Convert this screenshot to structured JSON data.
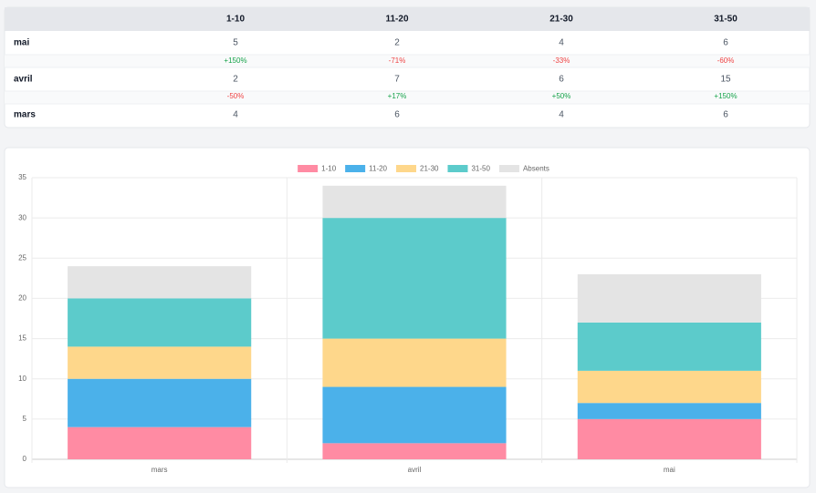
{
  "table": {
    "header": [
      "1-10",
      "11-20",
      "21-30",
      "31-50"
    ],
    "rows": [
      {
        "label": "mai",
        "cells": [
          "5",
          "2",
          "4",
          "6"
        ]
      },
      {
        "label": null,
        "cells": [
          "+150%",
          "-71%",
          "-33%",
          "-60%"
        ]
      },
      {
        "label": "avril",
        "cells": [
          "2",
          "7",
          "6",
          "15"
        ]
      },
      {
        "label": null,
        "cells": [
          "-50%",
          "+17%",
          "+50%",
          "+150%"
        ]
      },
      {
        "label": "mars",
        "cells": [
          "4",
          "6",
          "4",
          "6"
        ]
      }
    ]
  },
  "chart_data": {
    "type": "stacked_bar",
    "categories": [
      "mars",
      "avril",
      "mai"
    ],
    "series": [
      {
        "name": "1-10",
        "color": "#ff8ba3",
        "values": [
          4,
          2,
          5
        ]
      },
      {
        "name": "11-20",
        "color": "#4bb1ea",
        "values": [
          6,
          7,
          2
        ]
      },
      {
        "name": "21-30",
        "color": "#fed78b",
        "values": [
          4,
          6,
          4
        ]
      },
      {
        "name": "31-50",
        "color": "#5ccbcb",
        "values": [
          6,
          15,
          6
        ]
      },
      {
        "name": "Absents",
        "color": "#e4e4e4",
        "values": [
          4,
          4,
          6
        ]
      }
    ],
    "ylim": [
      0,
      35
    ],
    "yticks": [
      0,
      5,
      10,
      15,
      20,
      25,
      30,
      35
    ],
    "grid": true,
    "legend": "top"
  }
}
